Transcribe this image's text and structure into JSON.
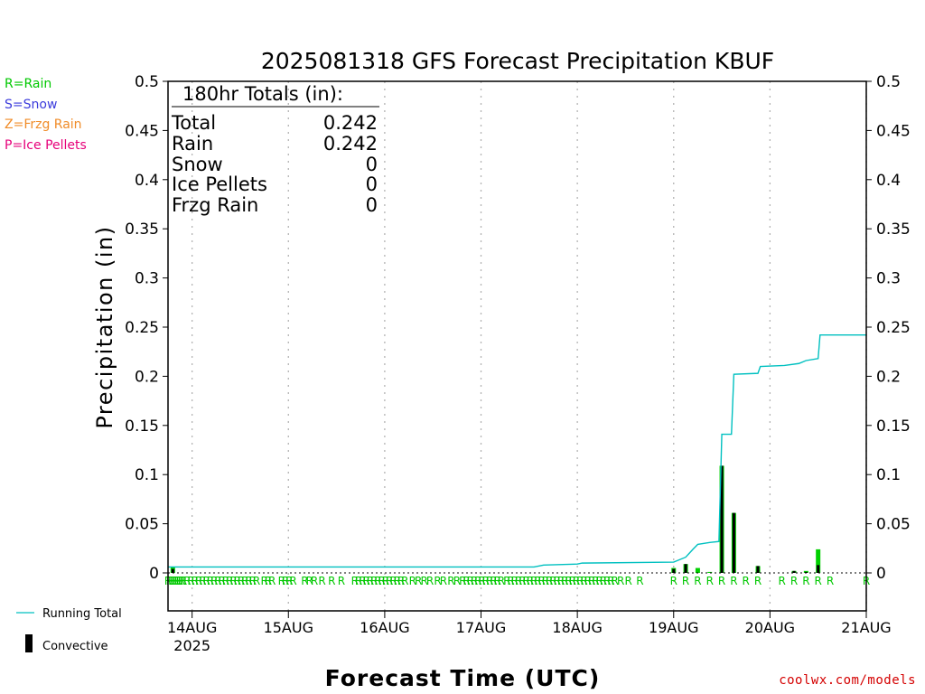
{
  "title": "2025081318 GFS Forecast Precipitation KBUF",
  "credit": "coolwx.com/models",
  "ptype_legend": [
    {
      "label": "R=Rain",
      "color": "#00c800"
    },
    {
      "label": "S=Snow",
      "color": "#3c3cdc"
    },
    {
      "label": "Z=Frzg Rain",
      "color": "#f08c28"
    },
    {
      "label": "P=Ice Pellets",
      "color": "#e6007a"
    }
  ],
  "bottom_legend": {
    "running_total": "Running Total",
    "convective": "Convective"
  },
  "totals": {
    "header": "180hr Totals (in):",
    "rows": [
      {
        "label": "Total",
        "value": "0.242"
      },
      {
        "label": "Rain",
        "value": "0.242"
      },
      {
        "label": "Snow",
        "value": "0"
      },
      {
        "label": "Ice Pellets",
        "value": "0"
      },
      {
        "label": "Frzg Rain",
        "value": "0"
      }
    ]
  },
  "colors": {
    "running_total": "#00c0c0",
    "rain_bar": "#00d000",
    "convective_bar": "#000000",
    "grid": "#b4b4b4"
  },
  "chart_data": {
    "type": "bar",
    "xlabel": "Forecast Time (UTC)",
    "ylabel": "Precipitation (in)",
    "ylim": [
      0,
      0.5
    ],
    "xlim_days": [
      0,
      7.25
    ],
    "yticks": [
      "0",
      "0.05",
      "0.1",
      "0.15",
      "0.2",
      "0.25",
      "0.3",
      "0.35",
      "0.4",
      "0.45",
      "0.5"
    ],
    "xtick_labels": [
      {
        "day": 0.25,
        "label": "14AUG",
        "sub": "2025"
      },
      {
        "day": 1.25,
        "label": "15AUG"
      },
      {
        "day": 2.25,
        "label": "16AUG"
      },
      {
        "day": 3.25,
        "label": "17AUG"
      },
      {
        "day": 4.25,
        "label": "18AUG"
      },
      {
        "day": 5.25,
        "label": "19AUG"
      },
      {
        "day": 6.25,
        "label": "20AUG"
      },
      {
        "day": 7.25,
        "label": "21AUG"
      }
    ],
    "grid": true,
    "bars": [
      {
        "day": 0.05,
        "total": 0.006,
        "convective": 0.004
      },
      {
        "day": 5.25,
        "total": 0.005,
        "convective": 0.004
      },
      {
        "day": 5.375,
        "total": 0.009,
        "convective": 0.009
      },
      {
        "day": 5.5,
        "total": 0.005,
        "convective": 0.0
      },
      {
        "day": 5.625,
        "total": 0.001,
        "convective": 0.0
      },
      {
        "day": 5.75,
        "total": 0.109,
        "convective": 0.109
      },
      {
        "day": 5.875,
        "total": 0.061,
        "convective": 0.061
      },
      {
        "day": 6.125,
        "total": 0.007,
        "convective": 0.007
      },
      {
        "day": 6.5,
        "total": 0.002,
        "convective": 0.002
      },
      {
        "day": 6.625,
        "total": 0.002,
        "convective": 0.001
      },
      {
        "day": 6.75,
        "total": 0.024,
        "convective": 0.008
      }
    ],
    "running_total": {
      "name": "Running Total",
      "points": [
        [
          0.0,
          0.006
        ],
        [
          3.8,
          0.006
        ],
        [
          3.9,
          0.008
        ],
        [
          4.25,
          0.009
        ],
        [
          4.3,
          0.01
        ],
        [
          5.25,
          0.011
        ],
        [
          5.375,
          0.016
        ],
        [
          5.45,
          0.024
        ],
        [
          5.5,
          0.029
        ],
        [
          5.625,
          0.031
        ],
        [
          5.72,
          0.032
        ],
        [
          5.75,
          0.141
        ],
        [
          5.85,
          0.141
        ],
        [
          5.875,
          0.202
        ],
        [
          6.125,
          0.203
        ],
        [
          6.15,
          0.21
        ],
        [
          6.4,
          0.211
        ],
        [
          6.55,
          0.213
        ],
        [
          6.625,
          0.216
        ],
        [
          6.75,
          0.218
        ],
        [
          6.77,
          0.242
        ],
        [
          7.25,
          0.242
        ]
      ]
    },
    "ptype_days": [
      0.0,
      0.02,
      0.04,
      0.06,
      0.08,
      0.1,
      0.12,
      0.14,
      0.16,
      0.2,
      0.24,
      0.28,
      0.32,
      0.36,
      0.4,
      0.44,
      0.48,
      0.52,
      0.56,
      0.6,
      0.64,
      0.68,
      0.72,
      0.76,
      0.8,
      0.84,
      0.88,
      0.92,
      1.0,
      1.04,
      1.08,
      1.18,
      1.22,
      1.26,
      1.3,
      1.42,
      1.47,
      1.52,
      1.6,
      1.7,
      1.8,
      1.94,
      1.98,
      2.02,
      2.06,
      2.1,
      2.14,
      2.18,
      2.22,
      2.26,
      2.3,
      2.34,
      2.38,
      2.42,
      2.46,
      2.54,
      2.6,
      2.66,
      2.72,
      2.8,
      2.86,
      2.94,
      3.0,
      3.06,
      3.1,
      3.14,
      3.18,
      3.22,
      3.26,
      3.3,
      3.34,
      3.38,
      3.42,
      3.46,
      3.52,
      3.56,
      3.6,
      3.64,
      3.68,
      3.72,
      3.76,
      3.8,
      3.84,
      3.88,
      3.92,
      3.96,
      4.0,
      4.04,
      4.08,
      4.12,
      4.16,
      4.2,
      4.24,
      4.28,
      4.32,
      4.36,
      4.4,
      4.44,
      4.48,
      4.52,
      4.56,
      4.6,
      4.64,
      4.7,
      4.78,
      4.9,
      5.25,
      5.375,
      5.5,
      5.625,
      5.75,
      5.875,
      6.0,
      6.125,
      6.375,
      6.5,
      6.625,
      6.75,
      6.875,
      7.25,
      7.5
    ]
  }
}
